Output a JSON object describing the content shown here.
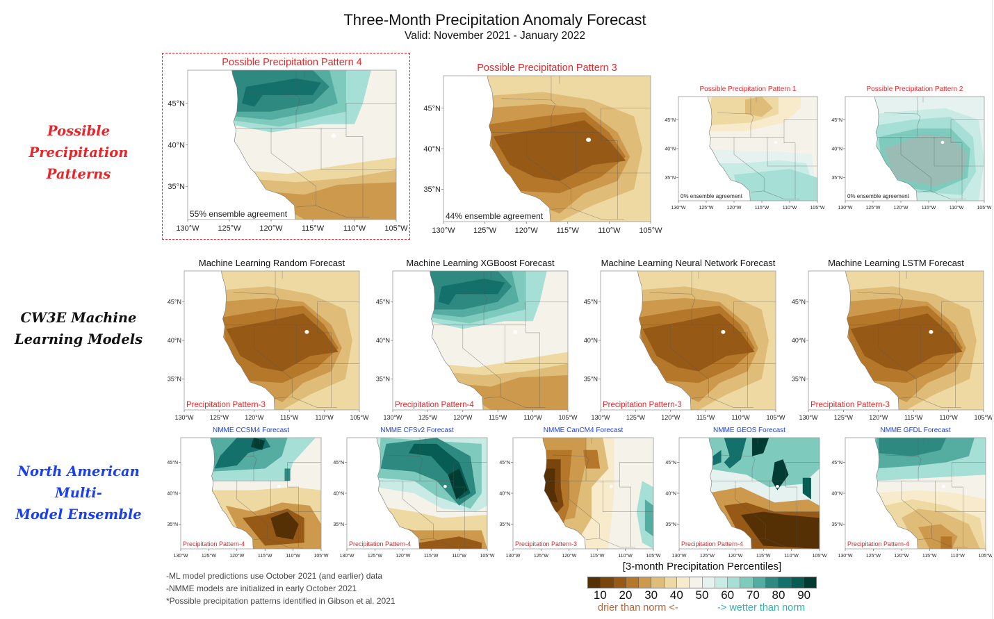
{
  "header": {
    "title": "Three-Month Precipitation Anomaly Forecast",
    "subtitle": "Valid: November 2021 - January 2022"
  },
  "row_labels": {
    "patterns": {
      "line1": "Possible Precipitation",
      "line2": "Patterns",
      "color": "#e8262a"
    },
    "ml": {
      "line1": "CW3E Machine",
      "line2": "Learning Models",
      "color": "#111111"
    },
    "nmme": {
      "line1": "North American Multi-",
      "line2": "Model Ensemble",
      "color": "#1a3ff0"
    }
  },
  "colors": {
    "pattern_title": "#e8262a",
    "ml_title": "#111111",
    "nmme_title": "#1a3ff0",
    "pattern_tag": "#e8262a",
    "highlight_border": "#e8262a"
  },
  "notes": [
    "-ML model predictions use October 2021 (and earlier) data",
    "-NMME models are initialized in early October 2021",
    "*Possible precipitation patterns identified in Gibson et al. 2021"
  ],
  "chart_data": {
    "type": "heatmap",
    "description": "Small-multiple contour maps of 3-month precipitation percentile forecasts over the western US",
    "map_extent": {
      "lon": [
        -130,
        -105
      ],
      "lat": [
        31,
        49
      ]
    },
    "x_ticks": [
      "130°W",
      "125°W",
      "120°W",
      "115°W",
      "110°W",
      "105°W"
    ],
    "y_ticks": [
      "45°N",
      "40°N",
      "35°N"
    ],
    "colorbar": {
      "title": "[3-month Precipitation Percentiles]",
      "tick_labels": [
        "10",
        "20",
        "30",
        "40",
        "50",
        "60",
        "70",
        "80",
        "90"
      ],
      "range": [
        5,
        95
      ],
      "bin_width": 5,
      "colors": [
        "#553005",
        "#7a450d",
        "#975a16",
        "#b5772a",
        "#cd9a4d",
        "#dfbd78",
        "#efd9a2",
        "#f7ebcb",
        "#f5f2ea",
        "#e6f2f0",
        "#c8ebe5",
        "#a5dfd6",
        "#7ecbbd",
        "#55ada2",
        "#2e8a80",
        "#14706a",
        "#075d53",
        "#003c32"
      ],
      "dry_label": "drier than norm <-",
      "wet_label": "-> wetter than norm"
    },
    "panels": [
      {
        "group": "patterns",
        "title": "Possible Precipitation Pattern 4",
        "annotation": "55% ensemble agreement",
        "ensemble_agreement_pct": 55,
        "pattern": 4,
        "highlighted": true,
        "size": "large"
      },
      {
        "group": "patterns",
        "title": "Possible Precipitation Pattern 3",
        "annotation": "44% ensemble agreement",
        "ensemble_agreement_pct": 44,
        "pattern": 3,
        "highlighted": false,
        "size": "large"
      },
      {
        "group": "patterns",
        "title": "Possible Precipitation Pattern 1",
        "annotation": "0% ensemble agreement",
        "ensemble_agreement_pct": 0,
        "pattern": 1,
        "highlighted": false,
        "size": "small"
      },
      {
        "group": "patterns",
        "title": "Possible Precipitation Pattern 2",
        "annotation": "0% ensemble agreement",
        "ensemble_agreement_pct": 0,
        "pattern": 2,
        "highlighted": false,
        "size": "small"
      },
      {
        "group": "ml",
        "title": "Machine Learning Random Forecast",
        "annotation": "Precipitation Pattern-3",
        "pattern": 3
      },
      {
        "group": "ml",
        "title": "Machine Learning XGBoost Forecast",
        "annotation": "Precipitation Pattern-4",
        "pattern": 4
      },
      {
        "group": "ml",
        "title": "Machine Learning Neural Network Forecast",
        "annotation": "Precipitation Pattern-3",
        "pattern": 3
      },
      {
        "group": "ml",
        "title": "Machine Learning LSTM Forecast",
        "annotation": "Precipitation Pattern-3",
        "pattern": 3
      },
      {
        "group": "nmme",
        "title": "NMME CCSM4 Forecast",
        "annotation": "Precipitation Pattern-4",
        "pattern": 4,
        "style": "ccsm4"
      },
      {
        "group": "nmme",
        "title": "NMME CFSv2 Forecast",
        "annotation": "Precipitation Pattern-4",
        "pattern": 4,
        "style": "cfsv2"
      },
      {
        "group": "nmme",
        "title": "NMME CanCM4 Forecast",
        "annotation": "Precipitation Pattern-3",
        "pattern": 3,
        "style": "cancm4"
      },
      {
        "group": "nmme",
        "title": "NMME GEOS Forecast",
        "annotation": "Precipitation Pattern-4",
        "pattern": 4,
        "style": "geos"
      },
      {
        "group": "nmme",
        "title": "NMME GFDL Forecast",
        "annotation": "Precipitation Pattern-4",
        "pattern": 4,
        "style": "gfdl"
      }
    ]
  }
}
